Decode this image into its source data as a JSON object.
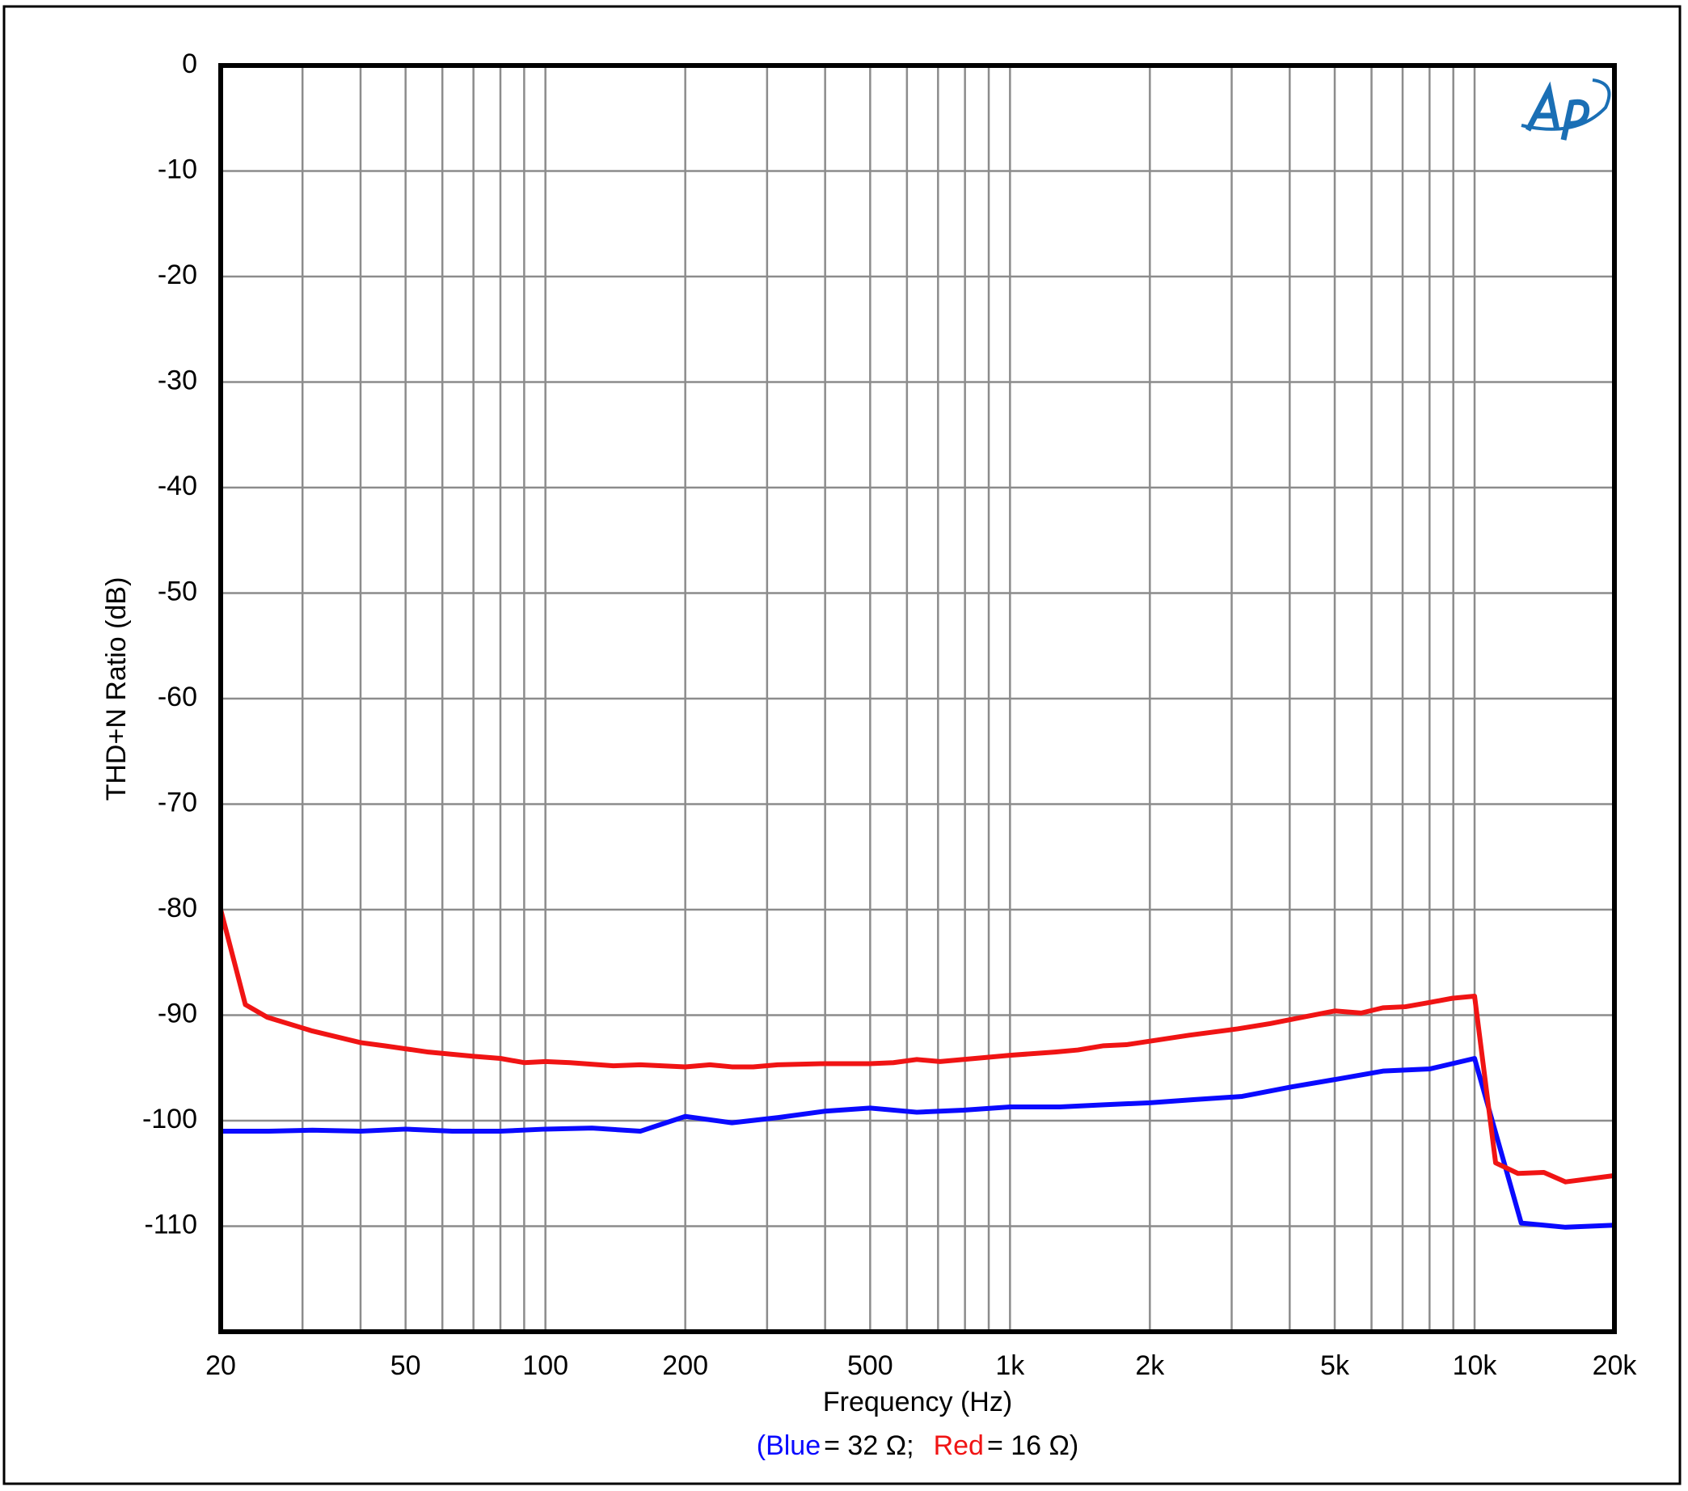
{
  "chart_data": {
    "type": "line",
    "x_label": "Frequency (Hz)",
    "y_label": "THD+N Ratio (dB)",
    "xscale": "log",
    "xlim": [
      20,
      20000
    ],
    "ylim": [
      -120,
      0
    ],
    "xticks": [
      20,
      50,
      100,
      200,
      500,
      {
        "value": 1000,
        "label": "1k"
      },
      {
        "value": 2000,
        "label": "2k"
      },
      {
        "value": 5000,
        "label": "5k"
      },
      {
        "value": 10000,
        "label": "10k"
      },
      {
        "value": 20000,
        "label": "20k"
      }
    ],
    "x_minor_ticks": [
      30,
      40,
      60,
      70,
      80,
      90,
      300,
      400,
      600,
      700,
      800,
      900,
      3000,
      4000,
      6000,
      7000,
      8000,
      9000
    ],
    "yticks": [
      0,
      -10,
      -20,
      -30,
      -40,
      -50,
      -60,
      -70,
      -80,
      -90,
      -100,
      -110
    ],
    "grid": true,
    "grid_color": "#8c8c8c",
    "legend_prefix": "(",
    "series": [
      {
        "name": "Blue",
        "label": "= 32 Ω;",
        "color": "#0a0aff",
        "x": [
          20,
          25.4,
          31.5,
          40,
          50,
          63,
          80,
          100,
          126,
          160,
          200,
          252,
          317,
          400,
          500,
          630,
          794,
          1000,
          1280,
          1590,
          2000,
          2500,
          3160,
          4040,
          5000,
          6350,
          8000,
          10000,
          12600,
          15700,
          20000
        ],
        "values": [
          -101,
          -101,
          -100.9,
          -101,
          -100.8,
          -101,
          -101,
          -100.8,
          -100.7,
          -101,
          -99.6,
          -100.2,
          -99.7,
          -99.1,
          -98.8,
          -99.2,
          -99,
          -98.7,
          -98.7,
          -98.5,
          -98.3,
          -98,
          -97.7,
          -96.8,
          -96.1,
          -95.3,
          -95.1,
          -94.1,
          -109.7,
          -110.1,
          -109.9
        ]
      },
      {
        "name": "Red",
        "label": "= 16 Ω)",
        "color": "#f01414",
        "x": [
          20,
          22.6,
          25.2,
          31.5,
          40,
          45,
          56,
          70,
          80,
          90,
          100,
          113,
          140,
          160,
          178,
          200,
          226,
          252,
          280,
          316,
          396,
          500,
          561,
          630,
          707,
          890,
          1000,
          1250,
          1400,
          1590,
          1780,
          2430,
          3090,
          3630,
          4260,
          5000,
          5700,
          6350,
          7100,
          8000,
          8950,
          10000,
          11100,
          12400,
          14100,
          15700,
          20000
        ],
        "values": [
          -80,
          -89,
          -90.2,
          -91.5,
          -92.6,
          -92.9,
          -93.5,
          -93.9,
          -94.1,
          -94.5,
          -94.4,
          -94.5,
          -94.8,
          -94.7,
          -94.8,
          -94.9,
          -94.7,
          -94.9,
          -94.9,
          -94.7,
          -94.6,
          -94.6,
          -94.5,
          -94.2,
          -94.4,
          -94.0,
          -93.8,
          -93.5,
          -93.3,
          -92.9,
          -92.8,
          -91.9,
          -91.3,
          -90.8,
          -90.2,
          -89.6,
          -89.8,
          -89.3,
          -89.2,
          -88.8,
          -88.4,
          -88.2,
          -104,
          -105,
          -104.9,
          -105.8,
          -105.2
        ]
      }
    ]
  }
}
